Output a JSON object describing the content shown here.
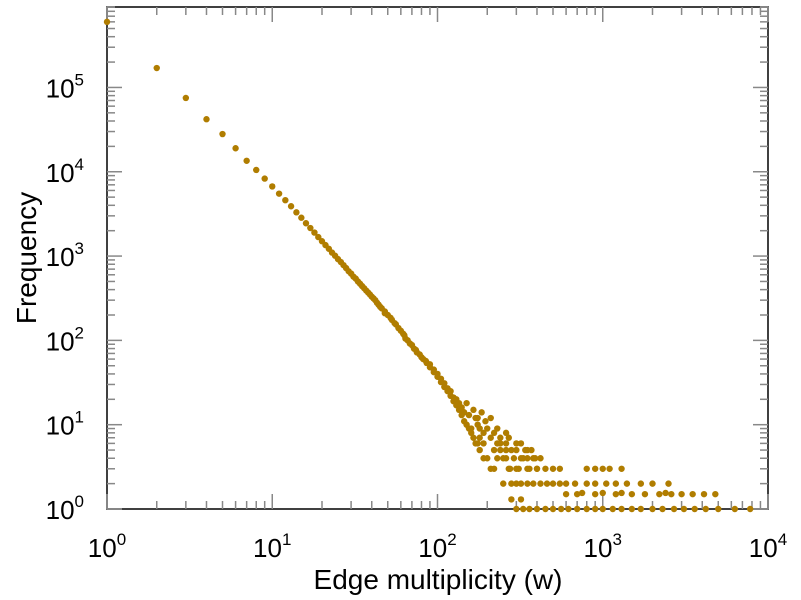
{
  "chart_data": {
    "type": "scatter",
    "title": "",
    "xlabel": "Edge multiplicity (w)",
    "ylabel": "Frequency",
    "x_scale": "log",
    "y_scale": "log",
    "xlim": [
      1,
      10000
    ],
    "ylim": [
      1,
      900000
    ],
    "x_ticks": [
      {
        "base": "10",
        "exp": "0",
        "value": 1
      },
      {
        "base": "10",
        "exp": "1",
        "value": 10
      },
      {
        "base": "10",
        "exp": "2",
        "value": 100
      },
      {
        "base": "10",
        "exp": "3",
        "value": 1000
      },
      {
        "base": "10",
        "exp": "4",
        "value": 10000
      }
    ],
    "y_ticks": [
      {
        "base": "10",
        "exp": "0",
        "value": 1
      },
      {
        "base": "10",
        "exp": "1",
        "value": 10
      },
      {
        "base": "10",
        "exp": "2",
        "value": 100
      },
      {
        "base": "10",
        "exp": "3",
        "value": 1000
      },
      {
        "base": "10",
        "exp": "4",
        "value": 10000
      },
      {
        "base": "10",
        "exp": "5",
        "value": 100000
      }
    ],
    "grid": false,
    "legend": "none",
    "marker_color": "#B07D00",
    "series": [
      {
        "points": [
          [
            1,
            600000
          ],
          [
            2,
            170000
          ],
          [
            3,
            75000
          ],
          [
            4,
            42000
          ],
          [
            5,
            28000
          ],
          [
            6,
            19000
          ],
          [
            7,
            13500
          ],
          [
            8,
            10500
          ],
          [
            9,
            8300
          ],
          [
            10,
            6700
          ],
          [
            11,
            5500
          ],
          [
            12,
            4600
          ],
          [
            13,
            3900
          ],
          [
            14,
            3300
          ],
          [
            15,
            2850
          ],
          [
            16,
            2450
          ],
          [
            17,
            2150
          ],
          [
            18,
            1900
          ],
          [
            19,
            1680
          ],
          [
            20,
            1500
          ],
          [
            22,
            1220
          ],
          [
            24,
            1010
          ],
          [
            26,
            850
          ],
          [
            28,
            720
          ],
          [
            30,
            620
          ],
          [
            32,
            540
          ],
          [
            34,
            470
          ],
          [
            36,
            415
          ],
          [
            38,
            370
          ],
          [
            40,
            330
          ],
          [
            42,
            300
          ],
          [
            44,
            265
          ],
          [
            46,
            240
          ],
          [
            48,
            220
          ],
          [
            50,
            200
          ],
          [
            53,
            175
          ],
          [
            56,
            155
          ],
          [
            60,
            130
          ],
          [
            63,
            115
          ],
          [
            66,
            100
          ],
          [
            70,
            88
          ],
          [
            74,
            77
          ],
          [
            78,
            68
          ],
          [
            82,
            60
          ],
          [
            86,
            54
          ],
          [
            90,
            48
          ],
          [
            95,
            42
          ],
          [
            100,
            37
          ],
          [
            105,
            32
          ],
          [
            110,
            28
          ],
          [
            115,
            25
          ],
          [
            120,
            22
          ],
          [
            125,
            19
          ],
          [
            130,
            17
          ],
          [
            135,
            15
          ],
          [
            140,
            13
          ],
          [
            145,
            11
          ],
          [
            150,
            10
          ],
          [
            155,
            9
          ],
          [
            160,
            8
          ],
          [
            165,
            7
          ],
          [
            170,
            6
          ],
          [
            175,
            6
          ],
          [
            180,
            5
          ],
          [
            190,
            4
          ],
          [
            200,
            4
          ],
          [
            210,
            3
          ],
          [
            220,
            3
          ],
          [
            150,
            18
          ],
          [
            170,
            12
          ],
          [
            185,
            14
          ],
          [
            200,
            9
          ],
          [
            210,
            7
          ],
          [
            230,
            6
          ],
          [
            250,
            4
          ],
          [
            260,
            5
          ],
          [
            275,
            3
          ],
          [
            300,
            3
          ],
          [
            330,
            4
          ],
          [
            360,
            3
          ],
          [
            400,
            3
          ],
          [
            250,
            2
          ],
          [
            280,
            2
          ],
          [
            300,
            2
          ],
          [
            320,
            2
          ],
          [
            350,
            2
          ],
          [
            380,
            2
          ],
          [
            420,
            2
          ],
          [
            460,
            2
          ],
          [
            500,
            2
          ],
          [
            550,
            2
          ],
          [
            300,
            1
          ],
          [
            330,
            1
          ],
          [
            360,
            1
          ],
          [
            400,
            1
          ],
          [
            450,
            1
          ],
          [
            500,
            1
          ],
          [
            560,
            1
          ],
          [
            620,
            1
          ],
          [
            700,
            1
          ],
          [
            800,
            1
          ],
          [
            900,
            1
          ],
          [
            1000,
            1
          ],
          [
            1150,
            1
          ],
          [
            1300,
            1
          ],
          [
            1500,
            1
          ],
          [
            1700,
            1
          ],
          [
            2000,
            1
          ],
          [
            2300,
            1
          ],
          [
            2700,
            1
          ],
          [
            3100,
            1
          ],
          [
            3600,
            1
          ],
          [
            4200,
            1
          ],
          [
            5000,
            1
          ],
          [
            6300,
            1
          ],
          [
            7800,
            1
          ],
          [
            600,
            1.5
          ],
          [
            700,
            1.5
          ],
          [
            900,
            1.5
          ],
          [
            1200,
            1.5
          ],
          [
            1500,
            1.5
          ],
          [
            1800,
            1.5
          ],
          [
            2200,
            1.5
          ],
          [
            2600,
            1.5
          ],
          [
            3000,
            1.5
          ],
          [
            3500,
            1.5
          ],
          [
            4100,
            1.5
          ],
          [
            4800,
            1.5
          ],
          [
            750,
            1.55
          ],
          [
            1000,
            1.55
          ],
          [
            1300,
            1.55
          ],
          [
            2400,
            1.55
          ],
          [
            280,
            1.3
          ],
          [
            320,
            1.3
          ],
          [
            600,
            2
          ],
          [
            680,
            2
          ],
          [
            800,
            2
          ],
          [
            900,
            2
          ],
          [
            1050,
            2
          ],
          [
            1200,
            2
          ],
          [
            1400,
            2
          ],
          [
            1700,
            2
          ],
          [
            2000,
            2
          ],
          [
            2500,
            2
          ],
          [
            270,
            3
          ],
          [
            310,
            3
          ],
          [
            350,
            3
          ],
          [
            400,
            3
          ],
          [
            450,
            3
          ],
          [
            500,
            3
          ],
          [
            550,
            3
          ],
          [
            800,
            3
          ],
          [
            900,
            3
          ],
          [
            1000,
            3
          ],
          [
            1100,
            3
          ],
          [
            1300,
            3
          ],
          [
            230,
            4
          ],
          [
            260,
            4
          ],
          [
            290,
            4
          ],
          [
            320,
            4
          ],
          [
            350,
            4
          ],
          [
            380,
            4
          ],
          [
            220,
            5
          ],
          [
            240,
            5
          ],
          [
            280,
            5
          ],
          [
            300,
            5
          ],
          [
            340,
            5
          ],
          [
            240,
            6
          ],
          [
            260,
            6
          ],
          [
            270,
            7
          ],
          [
            300,
            6
          ],
          [
            190,
            6
          ],
          [
            180,
            7
          ],
          [
            160,
            9
          ],
          [
            175,
            10
          ],
          [
            190,
            8
          ],
          [
            220,
            8
          ],
          [
            240,
            7
          ],
          [
            260,
            8
          ],
          [
            320,
            6
          ],
          [
            350,
            5
          ],
          [
            370,
            5
          ],
          [
            390,
            4
          ],
          [
            420,
            4
          ],
          [
            140,
            16
          ],
          [
            155,
            13
          ],
          [
            165,
            15
          ],
          [
            175,
            12
          ],
          [
            180,
            9
          ],
          [
            195,
            11
          ],
          [
            210,
            12
          ],
          [
            230,
            9
          ],
          [
            120,
            25
          ],
          [
            125,
            21
          ],
          [
            130,
            20
          ],
          [
            135,
            18
          ],
          [
            140,
            15
          ],
          [
            145,
            14
          ],
          [
            100,
            40
          ],
          [
            105,
            35
          ],
          [
            110,
            31
          ],
          [
            115,
            27
          ],
          [
            95,
            45
          ],
          [
            90,
            52
          ],
          [
            85,
            57
          ],
          [
            80,
            63
          ],
          [
            75,
            72
          ],
          [
            72,
            80
          ],
          [
            68,
            92
          ],
          [
            64,
            105
          ],
          [
            62,
            120
          ],
          [
            58,
            140
          ],
          [
            55,
            160
          ],
          [
            52,
            185
          ],
          [
            48,
            210
          ],
          [
            45,
            250
          ],
          [
            43,
            280
          ],
          [
            41,
            315
          ],
          [
            39,
            350
          ],
          [
            37,
            390
          ],
          [
            35,
            440
          ],
          [
            33,
            500
          ],
          [
            31,
            570
          ],
          [
            29,
            660
          ],
          [
            27,
            780
          ],
          [
            25,
            920
          ],
          [
            23,
            1100
          ],
          [
            21,
            1350
          ]
        ]
      }
    ]
  }
}
